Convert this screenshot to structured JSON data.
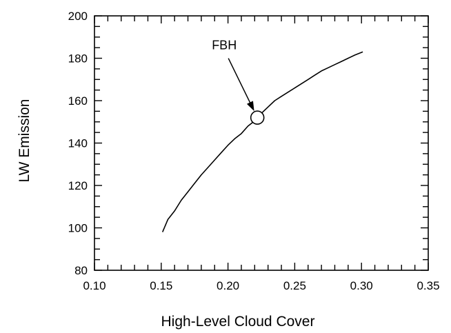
{
  "chart_data": {
    "type": "line",
    "title": "",
    "xlabel": "High-Level Cloud Cover",
    "ylabel": "LW Emission",
    "xlim": [
      0.1,
      0.35
    ],
    "ylim": [
      80,
      200
    ],
    "xticks": [
      "0.10",
      "0.15",
      "0.20",
      "0.25",
      "0.30",
      "0.35"
    ],
    "yticks": [
      "80",
      "100",
      "120",
      "140",
      "160",
      "180",
      "200"
    ],
    "grid": false,
    "legend": "none",
    "series": [
      {
        "x": [
          0.151,
          0.155,
          0.16,
          0.165,
          0.17,
          0.175,
          0.18,
          0.185,
          0.19,
          0.195,
          0.2,
          0.205,
          0.21,
          0.215,
          0.22,
          0.225,
          0.23,
          0.235,
          0.24,
          0.245,
          0.25,
          0.255,
          0.26,
          0.265,
          0.27,
          0.275,
          0.28,
          0.285,
          0.29,
          0.295,
          0.301
        ],
        "y": [
          98,
          104,
          108,
          113,
          117,
          121,
          125,
          128.5,
          132,
          135.5,
          139,
          142,
          144.5,
          148,
          150.5,
          154,
          157,
          160,
          162,
          164,
          166,
          168,
          170,
          172,
          174,
          175.5,
          177,
          178.5,
          180,
          181.5,
          183
        ]
      }
    ],
    "annotations": [
      {
        "text": "FBH",
        "x": 0.222,
        "y": 152,
        "marker": "open-circle",
        "arrow": true
      }
    ]
  }
}
